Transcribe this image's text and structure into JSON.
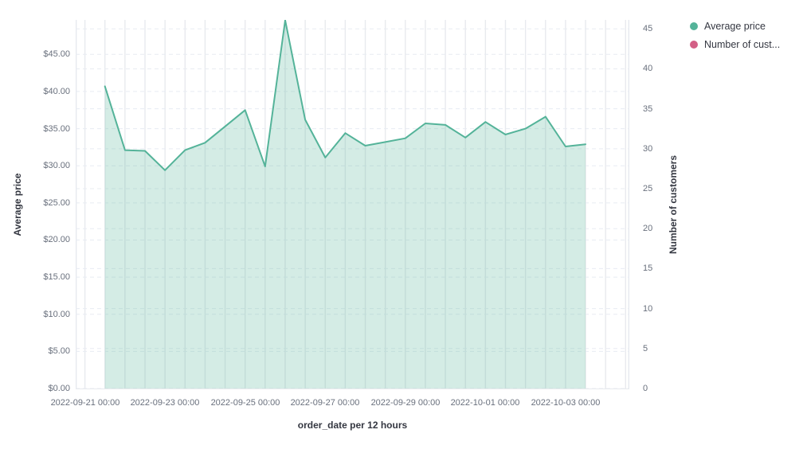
{
  "legend": {
    "items": [
      {
        "label": "Average price",
        "color": "#54B399"
      },
      {
        "label": "Number of cust...",
        "color": "#D36086"
      }
    ]
  },
  "chart_data": {
    "type": "area",
    "title": "",
    "xlabel": "order_date per 12 hours",
    "ylabel_left": "Average price",
    "ylabel_right": "Number of customers",
    "grid": true,
    "legend_position": "top-right",
    "x_tick_labels": [
      "2022-09-21 00:00",
      "2022-09-23 00:00",
      "2022-09-25 00:00",
      "2022-09-27 00:00",
      "2022-09-29 00:00",
      "2022-10-01 00:00",
      "2022-10-03 00:00"
    ],
    "y_left": {
      "tick_labels": [
        "$0.00",
        "$5.00",
        "$10.00",
        "$15.00",
        "$20.00",
        "$25.00",
        "$30.00",
        "$35.00",
        "$40.00",
        "$45.00"
      ],
      "tick_values": [
        0,
        5,
        10,
        15,
        20,
        25,
        30,
        35,
        40,
        45
      ],
      "ylim": [
        0,
        49.65
      ]
    },
    "y_right": {
      "tick_labels": [
        "0",
        "5",
        "10",
        "15",
        "20",
        "25",
        "30",
        "35",
        "40",
        "45"
      ],
      "tick_values": [
        0,
        5,
        10,
        15,
        20,
        25,
        30,
        35,
        40,
        45
      ],
      "ylim": [
        0,
        46.2
      ]
    },
    "x": [
      "2022-09-21 12:00",
      "2022-09-22 00:00",
      "2022-09-22 12:00",
      "2022-09-23 00:00",
      "2022-09-23 12:00",
      "2022-09-24 00:00",
      "2022-09-24 12:00",
      "2022-09-25 00:00",
      "2022-09-25 12:00",
      "2022-09-26 00:00",
      "2022-09-26 12:00",
      "2022-09-27 00:00",
      "2022-09-27 12:00",
      "2022-09-28 00:00",
      "2022-09-28 12:00",
      "2022-09-29 00:00",
      "2022-09-29 12:00",
      "2022-09-30 00:00",
      "2022-09-30 12:00",
      "2022-10-01 00:00",
      "2022-10-01 12:00",
      "2022-10-02 00:00",
      "2022-10-02 12:00",
      "2022-10-03 00:00",
      "2022-10-03 12:00"
    ],
    "series": [
      {
        "name": "Average price",
        "color": "#54B399",
        "axis": "left",
        "values": [
          40.7,
          32.1,
          32.0,
          29.4,
          32.1,
          33.1,
          35.3,
          37.5,
          29.9,
          49.6,
          36.2,
          31.1,
          34.4,
          32.7,
          33.2,
          33.7,
          35.7,
          35.5,
          33.8,
          35.9,
          34.2,
          35.0,
          36.6,
          32.6,
          32.9
        ]
      },
      {
        "name": "Number of customers",
        "color": "#D36086",
        "axis": "right",
        "values": []
      }
    ]
  }
}
